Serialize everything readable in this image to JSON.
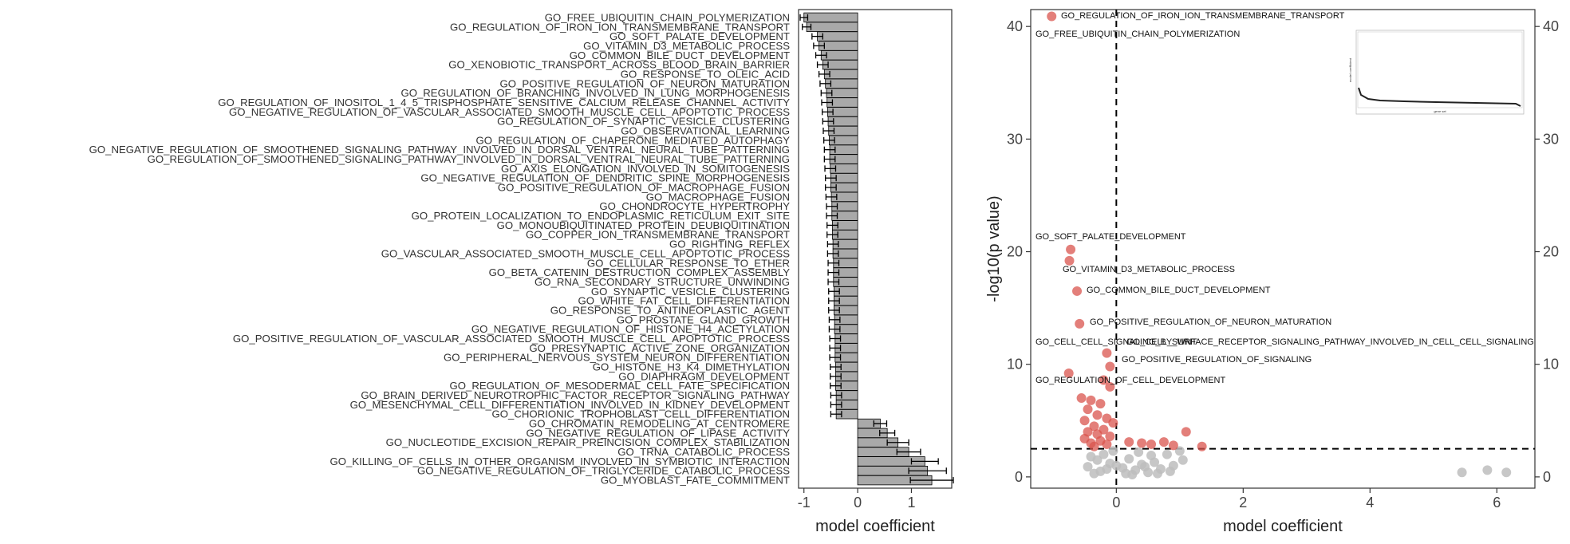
{
  "chart_data": [
    {
      "type": "bar",
      "orientation": "horizontal",
      "xlabel": "model coefficient",
      "xlim": [
        -1.1,
        1.75
      ],
      "xticks": [
        -1,
        0,
        1
      ],
      "bar_color": "#a9a9a9",
      "categories": [
        "GO_FREE_UBIQUITIN_CHAIN_POLYMERIZATION",
        "GO_REGULATION_OF_IRON_ION_TRANSMEMBRANE_TRANSPORT",
        "GO_SOFT_PALATE_DEVELOPMENT",
        "GO_VITAMIN_D3_METABOLIC_PROCESS",
        "GO_COMMON_BILE_DUCT_DEVELOPMENT",
        "GO_XENOBIOTIC_TRANSPORT_ACROSS_BLOOD_BRAIN_BARRIER",
        "GO_RESPONSE_TO_OLEIC_ACID",
        "GO_POSITIVE_REGULATION_OF_NEURON_MATURATION",
        "GO_REGULATION_OF_BRANCHING_INVOLVED_IN_LUNG_MORPHOGENESIS",
        "GO_REGULATION_OF_INOSITOL_1_4_5_TRISPHOSPHATE_SENSITIVE_CALCIUM_RELEASE_CHANNEL_ACTIVITY",
        "GO_NEGATIVE_REGULATION_OF_VASCULAR_ASSOCIATED_SMOOTH_MUSCLE_CELL_APOPTOTIC_PROCESS",
        "GO_REGULATION_OF_SYNAPTIC_VESICLE_CLUSTERING",
        "GO_OBSERVATIONAL_LEARNING",
        "GO_REGULATION_OF_CHAPERONE_MEDIATED_AUTOPHAGY",
        "GO_NEGATIVE_REGULATION_OF_SMOOTHENED_SIGNALING_PATHWAY_INVOLVED_IN_DORSAL_VENTRAL_NEURAL_TUBE_PATTERNING",
        "GO_REGULATION_OF_SMOOTHENED_SIGNALING_PATHWAY_INVOLVED_IN_DORSAL_VENTRAL_NEURAL_TUBE_PATTERNING",
        "GO_AXIS_ELONGATION_INVOLVED_IN_SOMITOGENESIS",
        "GO_NEGATIVE_REGULATION_OF_DENDRITIC_SPINE_MORPHOGENESIS",
        "GO_POSITIVE_REGULATION_OF_MACROPHAGE_FUSION",
        "GO_MACROPHAGE_FUSION",
        "GO_CHONDROCYTE_HYPERTROPHY",
        "GO_PROTEIN_LOCALIZATION_TO_ENDOPLASMIC_RETICULUM_EXIT_SITE",
        "GO_MONOUBIQUITINATED_PROTEIN_DEUBIQUITINATION",
        "GO_COPPER_ION_TRANSMEMBRANE_TRANSPORT",
        "GO_RIGHTING_REFLEX",
        "GO_VASCULAR_ASSOCIATED_SMOOTH_MUSCLE_CELL_APOPTOTIC_PROCESS",
        "GO_CELLULAR_RESPONSE_TO_ETHER",
        "GO_BETA_CATENIN_DESTRUCTION_COMPLEX_ASSEMBLY",
        "GO_RNA_SECONDARY_STRUCTURE_UNWINDING",
        "GO_SYNAPTIC_VESICLE_CLUSTERING",
        "GO_WHITE_FAT_CELL_DIFFERENTIATION",
        "GO_RESPONSE_TO_ANTINEOPLASTIC_AGENT",
        "GO_PROSTATE_GLAND_GROWTH",
        "GO_NEGATIVE_REGULATION_OF_HISTONE_H4_ACETYLATION",
        "GO_POSITIVE_REGULATION_OF_VASCULAR_ASSOCIATED_SMOOTH_MUSCLE_CELL_APOPTOTIC_PROCESS",
        "GO_PRESYNAPTIC_ACTIVE_ZONE_ORGANIZATION",
        "GO_PERIPHERAL_NERVOUS_SYSTEM_NEURON_DIFFERENTIATION",
        "GO_HISTONE_H3_K4_DIMETHYLATION",
        "GO_DIAPHRAGM_DEVELOPMENT",
        "GO_REGULATION_OF_MESODERMAL_CELL_FATE_SPECIFICATION",
        "GO_BRAIN_DERIVED_NEUROTROPHIC_FACTOR_RECEPTOR_SIGNALING_PATHWAY",
        "GO_MESENCHYMAL_CELL_DIFFERENTIATION_INVOLVED_IN_KIDNEY_DEVELOPMENT",
        "GO_CHORIONIC_TROPHOBLAST_CELL_DIFFERENTIATION",
        "GO_CHROMATIN_REMODELING_AT_CENTROMERE",
        "GO_NEGATIVE_REGULATION_OF_LIPASE_ACTIVITY",
        "GO_NUCLEOTIDE_EXCISION_REPAIR_PREINCISION_COMPLEX_STABILIZATION",
        "GO_TRNA_CATABOLIC_PROCESS",
        "GO_KILLING_OF_CELLS_IN_OTHER_ORGANISM_INVOLVED_IN_SYMBIOTIC_INTERACTION",
        "GO_NEGATIVE_REGULATION_OF_TRIGLYCERIDE_CATABOLIC_PROCESS",
        "GO_MYOBLAST_FATE_COMMITMENT"
      ],
      "values": [
        -1.0,
        -0.95,
        -0.75,
        -0.72,
        -0.68,
        -0.65,
        -0.62,
        -0.6,
        -0.58,
        -0.57,
        -0.56,
        -0.55,
        -0.54,
        -0.53,
        -0.52,
        -0.52,
        -0.51,
        -0.5,
        -0.5,
        -0.49,
        -0.48,
        -0.48,
        -0.47,
        -0.47,
        -0.46,
        -0.46,
        -0.45,
        -0.45,
        -0.45,
        -0.44,
        -0.44,
        -0.44,
        -0.43,
        -0.43,
        -0.42,
        -0.42,
        -0.42,
        -0.41,
        -0.41,
        -0.41,
        -0.4,
        -0.4,
        -0.4,
        0.42,
        0.55,
        0.75,
        0.95,
        1.25,
        1.3,
        1.38
      ],
      "errors": [
        0.07,
        0.08,
        0.1,
        0.1,
        0.1,
        0.1,
        0.1,
        0.1,
        0.1,
        0.1,
        0.1,
        0.1,
        0.1,
        0.1,
        0.1,
        0.1,
        0.1,
        0.1,
        0.1,
        0.1,
        0.1,
        0.1,
        0.1,
        0.1,
        0.1,
        0.1,
        0.1,
        0.1,
        0.1,
        0.1,
        0.1,
        0.1,
        0.1,
        0.1,
        0.1,
        0.1,
        0.1,
        0.1,
        0.1,
        0.1,
        0.1,
        0.1,
        0.1,
        0.12,
        0.14,
        0.2,
        0.22,
        0.25,
        0.35,
        0.4
      ]
    },
    {
      "type": "scatter",
      "xlabel": "model coefficient",
      "ylabel": "-log10(p value)",
      "xlim": [
        -1.35,
        6.6
      ],
      "ylim": [
        -1,
        41.5
      ],
      "xticks": [
        0,
        2,
        4,
        6
      ],
      "yticks": [
        0,
        10,
        20,
        30,
        40
      ],
      "vline_x": 0,
      "hline_y": 2.5,
      "sig_color": "#d9544d",
      "nonsig_color": "#bdbdbd",
      "significant_points": [
        {
          "x": -1.02,
          "y": 40.9,
          "label": "GO_REGULATION_OF_IRON_ION_TRANSMEMBRANE_TRANSPORT"
        },
        {
          "x": -0.72,
          "y": 20.2,
          "label": "GO_SOFT_PALATE_DEVELOPMENT"
        },
        {
          "x": -0.74,
          "y": 19.2,
          "label": "GO_VITAMIN_D3_METABOLIC_PROCESS"
        },
        {
          "x": -0.62,
          "y": 16.5,
          "label": "GO_COMMON_BILE_DUCT_DEVELOPMENT"
        },
        {
          "x": -0.58,
          "y": 13.6,
          "label": "GO_POSITIVE_REGULATION_OF_NEURON_MATURATION"
        },
        {
          "x": -0.15,
          "y": 11.0,
          "label": "GO_CELL_CELL_SIGNALING_BY_WNT"
        },
        {
          "x": -0.1,
          "y": 9.8,
          "label": "GO_POSITIVE_REGULATION_OF_SIGNALING"
        },
        {
          "x": -0.75,
          "y": 9.2,
          "label": "GO_REGULATION_OF_CELL_DEVELOPMENT"
        },
        {
          "x": -0.2,
          "y": 8.6,
          "label": ""
        },
        {
          "x": -0.1,
          "y": 8.0,
          "label": ""
        },
        {
          "x": -0.55,
          "y": 7.0,
          "label": ""
        },
        {
          "x": -0.4,
          "y": 6.8,
          "label": ""
        },
        {
          "x": -0.25,
          "y": 6.5,
          "label": ""
        },
        {
          "x": -0.45,
          "y": 6.0,
          "label": ""
        },
        {
          "x": -0.3,
          "y": 5.5,
          "label": ""
        },
        {
          "x": -0.15,
          "y": 5.2,
          "label": ""
        },
        {
          "x": -0.5,
          "y": 5.0,
          "label": ""
        },
        {
          "x": -0.05,
          "y": 4.8,
          "label": ""
        },
        {
          "x": -0.35,
          "y": 4.5,
          "label": ""
        },
        {
          "x": -0.2,
          "y": 4.2,
          "label": ""
        },
        {
          "x": -0.45,
          "y": 4.0,
          "label": ""
        },
        {
          "x": -0.3,
          "y": 3.8,
          "label": ""
        },
        {
          "x": -0.1,
          "y": 3.6,
          "label": ""
        },
        {
          "x": -0.5,
          "y": 3.4,
          "label": ""
        },
        {
          "x": -0.25,
          "y": 3.2,
          "label": ""
        },
        {
          "x": -0.4,
          "y": 3.0,
          "label": ""
        },
        {
          "x": -0.15,
          "y": 2.9,
          "label": ""
        },
        {
          "x": -0.35,
          "y": 2.7,
          "label": ""
        },
        {
          "x": 0.2,
          "y": 3.1,
          "label": ""
        },
        {
          "x": 0.4,
          "y": 3.0,
          "label": ""
        },
        {
          "x": 0.55,
          "y": 2.9,
          "label": ""
        },
        {
          "x": 0.75,
          "y": 3.1,
          "label": ""
        },
        {
          "x": 1.1,
          "y": 4.0,
          "label": ""
        },
        {
          "x": 1.35,
          "y": 2.7,
          "label": ""
        },
        {
          "x": 0.9,
          "y": 2.8,
          "label": ""
        }
      ],
      "nonsig_points": [
        {
          "x": -0.4,
          "y": 1.8
        },
        {
          "x": -0.3,
          "y": 1.5
        },
        {
          "x": -0.2,
          "y": 2.0
        },
        {
          "x": -0.1,
          "y": 1.2
        },
        {
          "x": 0.0,
          "y": 1.0
        },
        {
          "x": 0.1,
          "y": 0.8
        },
        {
          "x": 0.2,
          "y": 1.6
        },
        {
          "x": 0.3,
          "y": 0.6
        },
        {
          "x": 0.4,
          "y": 1.1
        },
        {
          "x": 0.5,
          "y": 0.4
        },
        {
          "x": 0.6,
          "y": 1.3
        },
        {
          "x": 0.7,
          "y": 0.7
        },
        {
          "x": 0.8,
          "y": 2.0
        },
        {
          "x": 0.9,
          "y": 1.0
        },
        {
          "x": 1.0,
          "y": 2.3
        },
        {
          "x": 1.05,
          "y": 1.5
        },
        {
          "x": -0.45,
          "y": 0.9
        },
        {
          "x": -0.25,
          "y": 0.5
        },
        {
          "x": 0.15,
          "y": 0.3
        },
        {
          "x": 0.35,
          "y": 2.2
        },
        {
          "x": 0.55,
          "y": 1.9
        },
        {
          "x": -0.05,
          "y": 2.3
        },
        {
          "x": 0.25,
          "y": 0.2
        },
        {
          "x": 0.45,
          "y": 0.9
        },
        {
          "x": 0.65,
          "y": 0.3
        },
        {
          "x": 0.85,
          "y": 0.5
        },
        {
          "x": -0.35,
          "y": 0.3
        },
        {
          "x": -0.15,
          "y": 0.7
        },
        {
          "x": 5.45,
          "y": 0.4
        },
        {
          "x": 5.85,
          "y": 0.6
        },
        {
          "x": 6.15,
          "y": 0.4
        }
      ],
      "inset": {
        "xlabel": "gene set",
        "ylabel": "model coefficient"
      }
    }
  ]
}
